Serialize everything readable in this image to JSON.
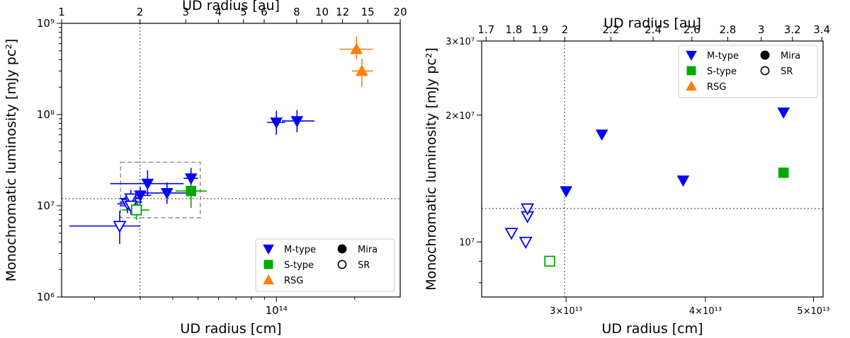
{
  "colors": {
    "m_type": "#0000ff",
    "s_type": "#00aa00",
    "rsg": "#ff7f0e",
    "reference": "#808080",
    "zoom_box": "#8c8c8c"
  },
  "chart_data": [
    {
      "type": "scatter",
      "id": "left",
      "xlabel": "UD radius [cm]",
      "ylabel": "Monochromatic luminosity [mJy pc²]",
      "x2label": "UD radius [au]",
      "xscale": "log",
      "yscale": "log",
      "xlim": [
        14960000000000.0,
        299000000000000.0
      ],
      "ylim": [
        1000000.0,
        1000000000.0
      ],
      "xticks_major": [
        {
          "value": 100000000000000.0,
          "label": "10¹⁴"
        }
      ],
      "yticks_major": [
        {
          "value": 1000000.0,
          "label": "10⁶"
        },
        {
          "value": 10000000.0,
          "label": "10⁷"
        },
        {
          "value": 100000000.0,
          "label": "10⁸"
        },
        {
          "value": 1000000000.0,
          "label": "10⁹"
        }
      ],
      "x2ticks": [
        {
          "value": 1,
          "label": "1"
        },
        {
          "value": 2,
          "label": "2"
        },
        {
          "value": 3,
          "label": "3"
        },
        {
          "value": 4,
          "label": "4"
        },
        {
          "value": 5,
          "label": "5"
        },
        {
          "value": 6,
          "label": "6"
        },
        {
          "value": 8,
          "label": "8"
        },
        {
          "value": 10,
          "label": "10"
        },
        {
          "value": 12,
          "label": "12"
        },
        {
          "value": 15,
          "label": "15"
        },
        {
          "value": 20,
          "label": "20"
        }
      ],
      "au_in_cm": 14960000000000.0,
      "reference_lines": {
        "x": 29900000000000.0,
        "y": 12000000.0
      },
      "zoom_box": {
        "x": [
          25200000000000.0,
          51000000000000.0
        ],
        "y": [
          7400000.0,
          30000000.0
        ]
      },
      "legend": {
        "position": "lower-right",
        "entries": [
          {
            "label": "M-type",
            "marker": "triangle-down",
            "color": "#0000ff"
          },
          {
            "label": "Mira",
            "marker": "circle-filled",
            "color": "#000000"
          },
          {
            "label": "S-type",
            "marker": "square",
            "color": "#00aa00"
          },
          {
            "label": "SR",
            "marker": "circle-open",
            "color": "#000000"
          },
          {
            "label": "RSG",
            "marker": "triangle-up",
            "color": "#ff7f0e"
          }
        ]
      },
      "points": [
        {
          "group": "M-type",
          "variability": "SR",
          "x": 25000000000000.0,
          "y": 6000000.0,
          "xerr": [
            16000000000000.0,
            30000000000000.0
          ],
          "yerr": [
            3800000.0,
            8800000.0
          ]
        },
        {
          "group": "M-type",
          "variability": "SR",
          "x": 26800000000000.0,
          "y": 10500000.0,
          "xerr": [
            24500000000000.0,
            29500000000000.0
          ],
          "yerr": [
            8300000.0,
            13000000.0
          ]
        },
        {
          "group": "M-type",
          "variability": "SR",
          "x": 27600000000000.0,
          "y": 11000000.0,
          "xerr": [
            25000000000000.0,
            30500000000000.0
          ],
          "yerr": [
            8600000.0,
            14000000.0
          ]
        },
        {
          "group": "M-type",
          "variability": "SR",
          "x": 27600000000000.0,
          "y": 12000000.0,
          "xerr": [
            25000000000000.0,
            30500000000000.0
          ],
          "yerr": [
            9500000.0,
            15000000.0
          ]
        },
        {
          "group": "M-type",
          "variability": "SR",
          "x": 27600000000000.0,
          "y": 10000000.0,
          "xerr": [
            25000000000000.0,
            30500000000000.0
          ],
          "yerr": [
            8000000.0,
            12500000.0
          ]
        },
        {
          "group": "M-type",
          "variability": "Mira",
          "x": 30000000000000.0,
          "y": 13000000.0,
          "xerr": [
            28000000000000.0,
            33000000000000.0
          ],
          "yerr": [
            10500000.0,
            16000000.0
          ]
        },
        {
          "group": "M-type",
          "variability": "Mira",
          "x": 32000000000000.0,
          "y": 17500000.0,
          "xerr": [
            23000000000000.0,
            44000000000000.0
          ],
          "yerr": [
            13000000.0,
            24500000.0
          ]
        },
        {
          "group": "M-type",
          "variability": "Mira",
          "x": 38000000000000.0,
          "y": 13800000.0,
          "xerr": [
            30000000000000.0,
            46000000000000.0
          ],
          "yerr": [
            10500000.0,
            18000000.0
          ]
        },
        {
          "group": "M-type",
          "variability": "Mira",
          "x": 47000000000000.0,
          "y": 20000000.0,
          "xerr": [
            44000000000000.0,
            50000000000000.0
          ],
          "yerr": [
            15500000.0,
            26000000.0
          ]
        },
        {
          "group": "M-type",
          "variability": "Mira",
          "x": 100000000000000.0,
          "y": 82000000.0,
          "xerr": [
            92000000000000.0,
            108000000000000.0
          ],
          "yerr": [
            60000000.0,
            110000000.0
          ]
        },
        {
          "group": "M-type",
          "variability": "Mira",
          "x": 120000000000000.0,
          "y": 85000000.0,
          "xerr": [
            105000000000000.0,
            140000000000000.0
          ],
          "yerr": [
            64000000.0,
            112000000.0
          ]
        },
        {
          "group": "S-type",
          "variability": "Mira",
          "x": 47000000000000.0,
          "y": 14500000.0,
          "xerr": [
            41000000000000.0,
            54000000000000.0
          ],
          "yerr": [
            9500000.0,
            20000000.0
          ]
        },
        {
          "group": "S-type",
          "variability": "SR",
          "x": 29000000000000.0,
          "y": 9000000.0,
          "xerr": [
            25500000000000.0,
            32500000000000.0
          ],
          "yerr": [
            7000000.0,
            11500000.0
          ]
        },
        {
          "group": "RSG",
          "variability": "Mira",
          "x": 203000000000000.0,
          "y": 520000000.0,
          "xerr": [
            175000000000000.0,
            235000000000000.0
          ],
          "yerr": [
            400000000.0,
            720000000.0
          ]
        },
        {
          "group": "RSG",
          "variability": "Mira",
          "x": 213000000000000.0,
          "y": 300000000.0,
          "xerr": [
            195000000000000.0,
            235000000000000.0
          ],
          "yerr": [
            200000000.0,
            410000000.0
          ]
        }
      ]
    },
    {
      "type": "scatter",
      "id": "right",
      "xlabel": "UD radius [cm]",
      "ylabel": "Monochromatic luminosity [mJy pc²]",
      "x2label": "UD radius [au]",
      "xscale": "log",
      "yscale": "log",
      "xlim": [
        25200000000000.0,
        51000000000000.0
      ],
      "ylim": [
        7400000.0,
        30000000.0
      ],
      "xticks_major": [
        {
          "value": 30000000000000.0,
          "label": "3×10¹³"
        },
        {
          "value": 40000000000000.0,
          "label": "4×10¹³"
        },
        {
          "value": 50000000000000.0,
          "label": "5×10¹³"
        }
      ],
      "yticks_major": [
        {
          "value": 10000000.0,
          "label": "10⁷"
        },
        {
          "value": 20000000.0,
          "label": "2×10⁷"
        },
        {
          "value": 30000000.0,
          "label": "3×10⁷"
        }
      ],
      "x2ticks": [
        {
          "value": 1.7,
          "label": "1.7"
        },
        {
          "value": 1.8,
          "label": "1.8"
        },
        {
          "value": 1.9,
          "label": "1.9"
        },
        {
          "value": 2.0,
          "label": "2"
        },
        {
          "value": 2.2,
          "label": "2.2"
        },
        {
          "value": 2.4,
          "label": "2.4"
        },
        {
          "value": 2.6,
          "label": "2.6"
        },
        {
          "value": 2.8,
          "label": "2.8"
        },
        {
          "value": 3.0,
          "label": "3"
        },
        {
          "value": 3.2,
          "label": "3.2"
        },
        {
          "value": 3.4,
          "label": "3.4"
        }
      ],
      "au_in_cm": 14960000000000.0,
      "reference_lines": {
        "x": 29900000000000.0,
        "y": 12000000.0
      },
      "legend": {
        "position": "upper-right",
        "entries": [
          {
            "label": "M-type",
            "marker": "triangle-down",
            "color": "#0000ff"
          },
          {
            "label": "Mira",
            "marker": "circle-filled",
            "color": "#000000"
          },
          {
            "label": "S-type",
            "marker": "square",
            "color": "#00aa00"
          },
          {
            "label": "SR",
            "marker": "circle-open",
            "color": "#000000"
          },
          {
            "label": "RSG",
            "marker": "triangle-up",
            "color": "#ff7f0e"
          }
        ]
      },
      "points": [
        {
          "group": "M-type",
          "variability": "SR",
          "x": 26800000000000.0,
          "y": 10500000.0
        },
        {
          "group": "M-type",
          "variability": "SR",
          "x": 27600000000000.0,
          "y": 10000000.0
        },
        {
          "group": "M-type",
          "variability": "SR",
          "x": 27700000000000.0,
          "y": 11500000.0
        },
        {
          "group": "M-type",
          "variability": "SR",
          "x": 27700000000000.0,
          "y": 12000000.0
        },
        {
          "group": "M-type",
          "variability": "Mira",
          "x": 30000000000000.0,
          "y": 13200000.0
        },
        {
          "group": "M-type",
          "variability": "Mira",
          "x": 32300000000000.0,
          "y": 18000000.0
        },
        {
          "group": "M-type",
          "variability": "Mira",
          "x": 38200000000000.0,
          "y": 14000000.0
        },
        {
          "group": "M-type",
          "variability": "Mira",
          "x": 47000000000000.0,
          "y": 20300000.0
        },
        {
          "group": "S-type",
          "variability": "Mira",
          "x": 47000000000000.0,
          "y": 14600000.0
        },
        {
          "group": "S-type",
          "variability": "SR",
          "x": 29000000000000.0,
          "y": 9000000.0
        }
      ]
    }
  ]
}
